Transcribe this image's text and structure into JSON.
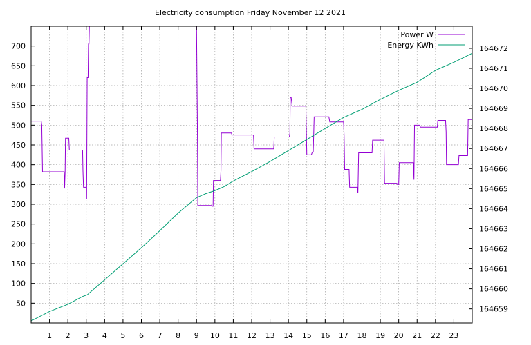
{
  "chart_data": {
    "type": "line",
    "title": "Electricity consumption Friday November 12 2021",
    "xlim": [
      0,
      24
    ],
    "x_ticks": [
      "1",
      "2",
      "3",
      "4",
      "5",
      "6",
      "7",
      "8",
      "9",
      "10",
      "11",
      "12",
      "13",
      "14",
      "15",
      "16",
      "17",
      "18",
      "19",
      "20",
      "21",
      "22",
      "23"
    ],
    "y_left": {
      "range": [
        0,
        750
      ],
      "ticks": [
        "50",
        "100",
        "150",
        "200",
        "250",
        "300",
        "350",
        "400",
        "450",
        "500",
        "550",
        "600",
        "650",
        "700"
      ]
    },
    "y_right": {
      "range": [
        164658.3,
        164673.1
      ],
      "ticks": [
        "164659",
        "164660",
        "164661",
        "164662",
        "164663",
        "164664",
        "164665",
        "164666",
        "164667",
        "164668",
        "164669",
        "164670",
        "164671",
        "164672"
      ]
    },
    "legend_position": "top-right",
    "grid": true,
    "series": [
      {
        "name": "Power W",
        "axis": "left",
        "color": "#9400d3",
        "step": true,
        "points": [
          [
            0,
            510
          ],
          [
            0.55,
            510
          ],
          [
            0.58,
            500
          ],
          [
            0.62,
            382
          ],
          [
            1.8,
            382
          ],
          [
            1.82,
            340
          ],
          [
            1.85,
            382
          ],
          [
            1.87,
            467
          ],
          [
            2.05,
            467
          ],
          [
            2.08,
            437
          ],
          [
            2.8,
            437
          ],
          [
            2.82,
            385
          ],
          [
            2.85,
            343
          ],
          [
            3.0,
            343
          ],
          [
            3.02,
            313
          ],
          [
            3.05,
            620
          ],
          [
            3.1,
            620
          ],
          [
            3.12,
            705
          ],
          [
            3.15,
            705
          ],
          [
            3.17,
            750
          ],
          [
            8.98,
            750
          ],
          [
            9.0,
            750
          ],
          [
            9.05,
            480
          ],
          [
            9.07,
            297
          ],
          [
            9.8,
            297
          ],
          [
            9.83,
            295
          ],
          [
            9.9,
            295
          ],
          [
            9.92,
            360
          ],
          [
            10.3,
            360
          ],
          [
            10.33,
            385
          ],
          [
            10.35,
            480
          ],
          [
            10.9,
            480
          ],
          [
            10.93,
            475
          ],
          [
            12.1,
            475
          ],
          [
            12.13,
            440
          ],
          [
            13.2,
            440
          ],
          [
            13.23,
            470
          ],
          [
            14.05,
            470
          ],
          [
            14.08,
            480
          ],
          [
            14.1,
            570
          ],
          [
            14.15,
            570
          ],
          [
            14.2,
            548
          ],
          [
            14.95,
            548
          ],
          [
            15.0,
            425
          ],
          [
            15.25,
            425
          ],
          [
            15.3,
            432
          ],
          [
            15.35,
            432
          ],
          [
            15.4,
            521
          ],
          [
            16.2,
            521
          ],
          [
            16.25,
            508
          ],
          [
            17.0,
            508
          ],
          [
            17.03,
            475
          ],
          [
            17.06,
            388
          ],
          [
            17.3,
            388
          ],
          [
            17.33,
            343
          ],
          [
            17.75,
            343
          ],
          [
            17.78,
            328
          ],
          [
            17.82,
            430
          ],
          [
            18.55,
            430
          ],
          [
            18.58,
            462
          ],
          [
            19.2,
            462
          ],
          [
            19.23,
            353
          ],
          [
            19.9,
            353
          ],
          [
            19.93,
            350
          ],
          [
            20.0,
            350
          ],
          [
            20.03,
            405
          ],
          [
            20.8,
            405
          ],
          [
            20.83,
            362
          ],
          [
            20.86,
            500
          ],
          [
            21.15,
            500
          ],
          [
            21.18,
            495
          ],
          [
            22.1,
            495
          ],
          [
            22.13,
            512
          ],
          [
            22.55,
            512
          ],
          [
            22.58,
            483
          ],
          [
            22.6,
            400
          ],
          [
            23.25,
            400
          ],
          [
            23.28,
            423
          ],
          [
            23.75,
            423
          ],
          [
            23.78,
            514
          ],
          [
            24,
            514
          ]
        ]
      },
      {
        "name": "Energy KWh",
        "axis": "right",
        "color": "#009e73",
        "step": false,
        "points": [
          [
            0,
            164658.4
          ],
          [
            1,
            164658.87
          ],
          [
            2,
            164659.23
          ],
          [
            2.8,
            164659.62
          ],
          [
            3.05,
            164659.7
          ],
          [
            4,
            164660.45
          ],
          [
            5,
            164661.25
          ],
          [
            6,
            164662.05
          ],
          [
            7,
            164662.9
          ],
          [
            8,
            164663.78
          ],
          [
            9,
            164664.55
          ],
          [
            9.5,
            164664.75
          ],
          [
            10,
            164664.9
          ],
          [
            10.5,
            164665.1
          ],
          [
            11,
            164665.38
          ],
          [
            12,
            164665.85
          ],
          [
            13,
            164666.35
          ],
          [
            14,
            164666.9
          ],
          [
            15,
            164667.45
          ],
          [
            16,
            164668.0
          ],
          [
            17,
            164668.55
          ],
          [
            18,
            164668.95
          ],
          [
            19,
            164669.45
          ],
          [
            20,
            164669.9
          ],
          [
            21,
            164670.3
          ],
          [
            22,
            164670.9
          ],
          [
            23,
            164671.3
          ],
          [
            24,
            164671.75
          ]
        ]
      }
    ]
  }
}
